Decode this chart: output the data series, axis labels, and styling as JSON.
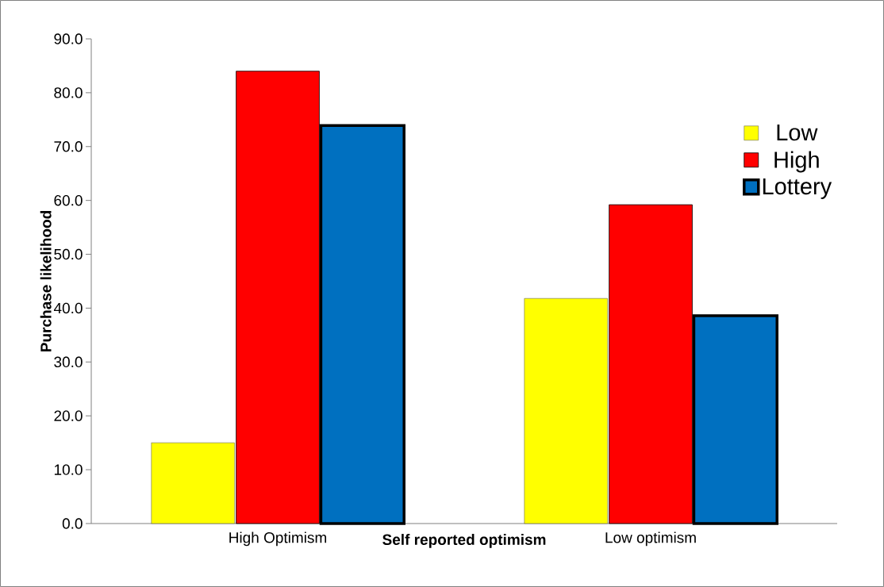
{
  "chart_data": {
    "type": "bar",
    "xlabel": "Self reported optimism",
    "ylabel": "Purchase likelihood",
    "categories": [
      "High Optimism",
      "Low optimism"
    ],
    "series": [
      {
        "name": "Low",
        "color": "#ffff00",
        "values": [
          15.0,
          41.8
        ]
      },
      {
        "name": "High",
        "color": "#ff0000",
        "values": [
          84.0,
          59.2
        ]
      },
      {
        "name": "Lottery",
        "color": "#0070c0",
        "values": [
          73.9,
          38.6
        ]
      }
    ],
    "ylim": [
      0,
      90
    ],
    "yticks": [
      {
        "value": 0,
        "label": "0.0"
      },
      {
        "value": 10,
        "label": "10.0"
      },
      {
        "value": 20,
        "label": "20.0"
      },
      {
        "value": 30,
        "label": "30.0"
      },
      {
        "value": 40,
        "label": "40.0"
      },
      {
        "value": 50,
        "label": "50.0"
      },
      {
        "value": 60,
        "label": "60.0"
      },
      {
        "value": 70,
        "label": "70.0"
      },
      {
        "value": 80,
        "label": "80.0"
      },
      {
        "value": 90,
        "label": "90.0"
      }
    ],
    "legend": "right"
  }
}
